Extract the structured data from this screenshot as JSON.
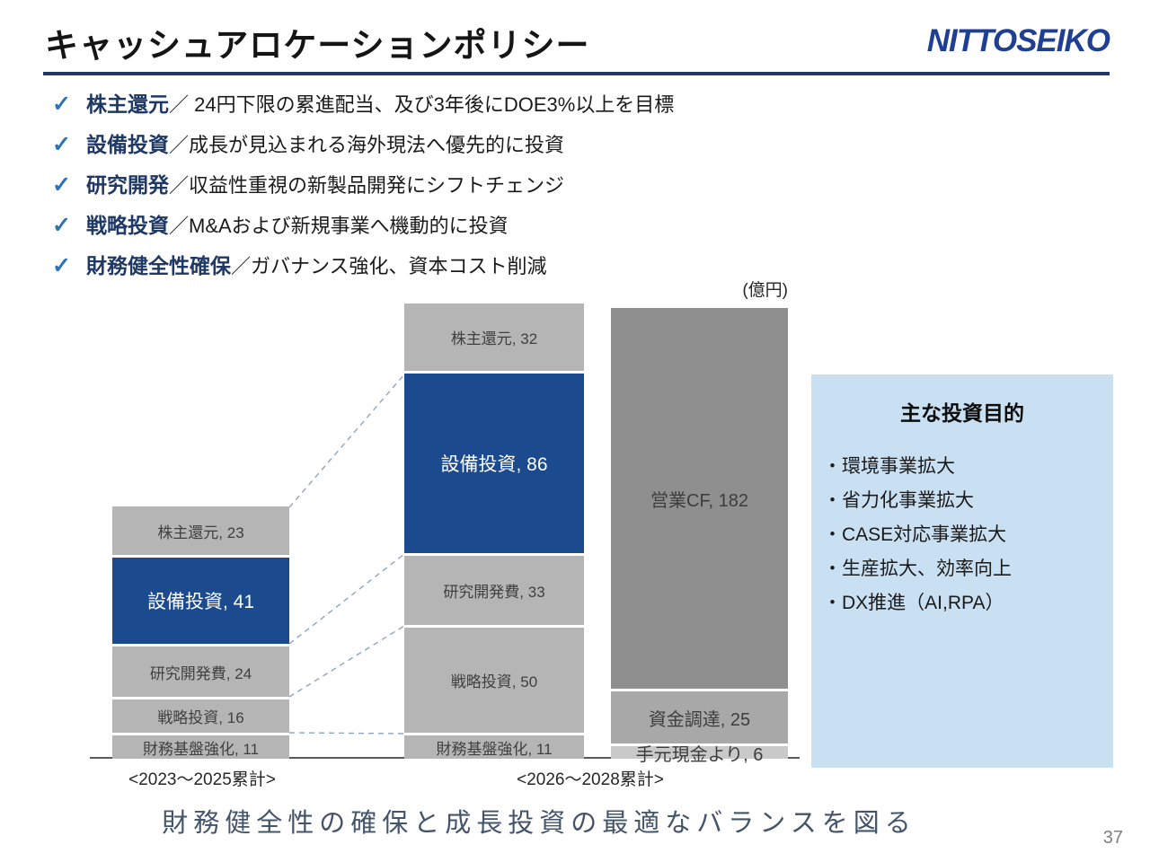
{
  "page": {
    "title": "キャッシュアロケーションポリシー",
    "logo_text": "NITTOSEIKO",
    "footer_message": "財務健全性の確保と成長投資の最適なバランスを図る",
    "page_number": "37"
  },
  "icons": {
    "check": "✓"
  },
  "policy_list": {
    "items": [
      {
        "label": "株主還元",
        "body": "／ 24円下限の累進配当、及び3年後にDOE3%以上を目標"
      },
      {
        "label": "設備投資",
        "body": "／成長が見込まれる海外現法へ優先的に投資"
      },
      {
        "label": "研究開発",
        "body": "／収益性重視の新製品開発にシフトチェンジ"
      },
      {
        "label": "戦略投資",
        "body": "／M&Aおよび新規事業へ機動的に投資"
      },
      {
        "label": "財務健全性確保",
        "body": "／ガバナンス強化、資本コスト削減"
      }
    ]
  },
  "chart_data": {
    "type": "bar",
    "stacked": true,
    "unit_label": "(億円)",
    "categories": [
      "<2023～2025累計>",
      "<2026～2028累計>",
      ""
    ],
    "bars": [
      {
        "category": "<2023～2025累計>",
        "total": 115,
        "segments": [
          {
            "name": "株主還元",
            "value": 23,
            "label": "株主還元, 23",
            "color": "#b5b5b5"
          },
          {
            "name": "設備投資",
            "value": 41,
            "label": "設備投資, 41",
            "color": "#1b4a8f",
            "accent": true
          },
          {
            "name": "研究開発費",
            "value": 24,
            "label": "研究開発費, 24",
            "color": "#b5b5b5"
          },
          {
            "name": "戦略投資",
            "value": 16,
            "label": "戦略投資, 16",
            "color": "#b5b5b5"
          },
          {
            "name": "財務基盤強化",
            "value": 11,
            "label": "財務基盤強化, 11",
            "color": "#b5b5b5"
          }
        ]
      },
      {
        "category": "<2026～2028累計>",
        "total": 212,
        "segments": [
          {
            "name": "株主還元",
            "value": 32,
            "label": "株主還元, 32",
            "color": "#b5b5b5"
          },
          {
            "name": "設備投資",
            "value": 86,
            "label": "設備投資, 86",
            "color": "#1b4a8f",
            "accent": true
          },
          {
            "name": "研究開発費",
            "value": 33,
            "label": "研究開発費, 33",
            "color": "#b5b5b5"
          },
          {
            "name": "戦略投資",
            "value": 50,
            "label": "戦略投資, 50",
            "color": "#b5b5b5"
          },
          {
            "name": "財務基盤強化",
            "value": 11,
            "label": "財務基盤強化, 11",
            "color": "#b5b5b5"
          }
        ]
      },
      {
        "category": "",
        "total": 213,
        "segments": [
          {
            "name": "営業CF",
            "value": 182,
            "label": "営業CF, 182",
            "color": "#8f8f8f",
            "large": true
          },
          {
            "name": "資金調達",
            "value": 25,
            "label": "資金調達, 25",
            "color": "#a8a8a8",
            "large": true
          },
          {
            "name": "手元現金より",
            "value": 6,
            "label": "手元現金より, 6",
            "color": "#c9c9c9",
            "large": true
          }
        ]
      }
    ]
  },
  "investment_panel": {
    "title": "主な投資目的",
    "items": [
      "・環境事業拡大",
      "・省力化事業拡大",
      "・CASE対応事業拡大",
      "・生産拡大、効率向上",
      "・DX推進（AI,RPA）"
    ]
  },
  "colors": {
    "accent_navy": "#1b4a8f",
    "segment_gray": "#b5b5b5",
    "operating_cf_gray": "#8f8f8f",
    "title_rule_navy": "#1f3864",
    "check_blue": "#2e74b5",
    "panel_bg": "#c9dff2",
    "footer_text": "#44546a"
  }
}
